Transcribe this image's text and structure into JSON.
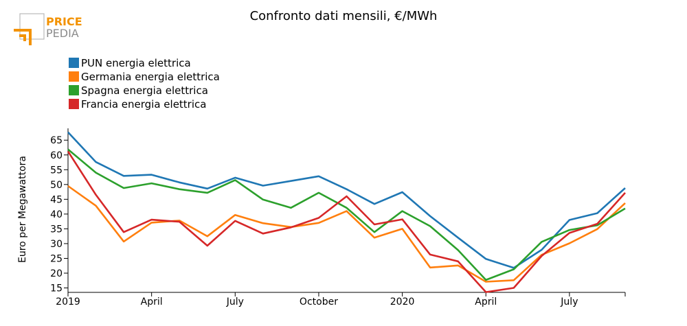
{
  "logo": {
    "line1": "PRICE",
    "line2": "PEDIA",
    "color_primary": "#f39200",
    "color_secondary": "#8c8c8c"
  },
  "chart_data": {
    "type": "line",
    "title": "Confronto dati mensili, €/MWh",
    "xlabel": "",
    "ylabel": "Euro per Megawattora",
    "ylim": [
      13.5,
      69
    ],
    "yticks": [
      15,
      20,
      25,
      30,
      35,
      40,
      45,
      50,
      55,
      60,
      65
    ],
    "xlim": [
      "2019-01",
      "2020-09"
    ],
    "xticks": [
      {
        "month": "2019-01",
        "label": "2019"
      },
      {
        "month": "2019-04",
        "label": "April"
      },
      {
        "month": "2019-07",
        "label": "July"
      },
      {
        "month": "2019-10",
        "label": "October"
      },
      {
        "month": "2020-01",
        "label": "2020"
      },
      {
        "month": "2020-04",
        "label": "April"
      },
      {
        "month": "2020-07",
        "label": "July"
      }
    ],
    "legend_position": "top-left",
    "grid": false,
    "x": [
      "2019-01",
      "2019-02",
      "2019-03",
      "2019-04",
      "2019-05",
      "2019-06",
      "2019-07",
      "2019-08",
      "2019-09",
      "2019-10",
      "2019-11",
      "2019-12",
      "2020-01",
      "2020-02",
      "2020-03",
      "2020-04",
      "2020-05",
      "2020-06",
      "2020-07",
      "2020-08",
      "2020-09"
    ],
    "series": [
      {
        "name": "PUN energia elettrica",
        "color": "#1f77b4",
        "values": [
          67.7,
          57.6,
          52.9,
          53.3,
          50.7,
          48.6,
          52.3,
          49.6,
          51.2,
          52.8,
          48.4,
          43.4,
          47.4,
          39.3,
          32.0,
          24.8,
          21.8,
          27.9,
          38.0,
          40.3,
          48.8
        ]
      },
      {
        "name": "Germania energia elettrica",
        "color": "#ff7f0e",
        "values": [
          49.5,
          42.8,
          30.7,
          37.1,
          37.8,
          32.5,
          39.7,
          36.9,
          35.6,
          37.0,
          41.0,
          32.0,
          35.0,
          21.9,
          22.6,
          17.1,
          17.6,
          26.2,
          30.1,
          34.9,
          43.7
        ]
      },
      {
        "name": "Spagna energia elettrica",
        "color": "#2ca02c",
        "values": [
          61.9,
          54.0,
          48.8,
          50.4,
          48.4,
          47.2,
          51.5,
          44.9,
          42.1,
          47.2,
          42.1,
          33.9,
          41.0,
          35.9,
          27.8,
          17.7,
          21.3,
          30.6,
          34.6,
          36.2,
          41.9
        ]
      },
      {
        "name": "Francia energia elettrica",
        "color": "#d62728",
        "values": [
          61.2,
          46.5,
          33.9,
          38.1,
          37.4,
          29.3,
          37.7,
          33.4,
          35.5,
          38.7,
          46.0,
          36.5,
          38.2,
          26.3,
          24.0,
          13.6,
          15.0,
          25.8,
          33.6,
          36.7,
          47.2
        ]
      }
    ]
  }
}
